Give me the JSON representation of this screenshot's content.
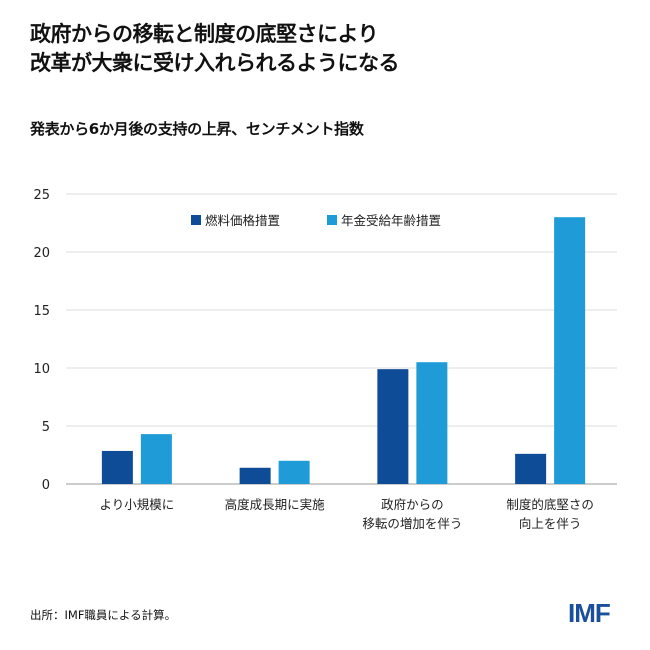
{
  "title_lines": [
    "政府からの移転と制度の底堅さにより",
    "改革が大衆に受け入れられるようになる"
  ],
  "subtitle": "発表から6か月後の支持の上昇、センチメント指数",
  "source": "出所：IMF職員による計算。",
  "logo": "IMF",
  "chart_data": {
    "type": "bar",
    "categories": [
      [
        "より小規模に"
      ],
      [
        "高度成長期に実施"
      ],
      [
        "政府からの",
        "移転の増加を伴う"
      ],
      [
        "制度的底堅さの",
        "向上を伴う"
      ]
    ],
    "series": [
      {
        "name": "燃料価格措置",
        "color": "#0f4c97",
        "values": [
          2.85,
          1.4,
          9.9,
          2.6
        ]
      },
      {
        "name": "年金受給年齢措置",
        "color": "#1f9cd8",
        "values": [
          4.3,
          2.0,
          10.5,
          23.0
        ]
      }
    ],
    "ylim": [
      0,
      25
    ],
    "yticks": [
      0,
      5,
      10,
      15,
      20,
      25
    ],
    "grid": true,
    "legend": "top-center"
  }
}
